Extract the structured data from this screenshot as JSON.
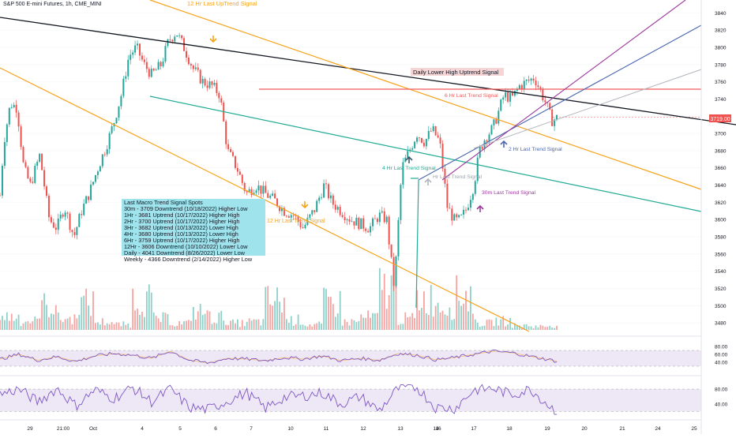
{
  "header": {
    "title": "S&P 500 E-mini Futures, 1h, CME_MINI"
  },
  "price_badge": {
    "value": "3719.00"
  },
  "signal_box": {
    "title": "Last Macro Trend Signal Spots",
    "lines": [
      "30m - 3709 Downtrend (10/18/2022) Higher Low",
      "1Hr - 3681 Uptrend (10/17/2022) Higher High",
      "2Hr - 3700 Uptrend (10/17/2022) Higher High",
      "3Hr - 3682 Uptrend (10/13/2022) Lower High",
      "4Hr - 3680 Uptrend (10/13/2022) Lower High",
      "6Hr - 3759 Uptrend (10/17/2022) Higher High",
      "12Hr - 3606 Downtrend (10/10/2022) Lower Low",
      "Daily - 4041 Downtrend (8/26/2022) Lower Low",
      "Weekly - 4366 Downtrend (2/14/2022) Higher Low"
    ]
  },
  "annotations": {
    "uptrend_12hr": "12 Hr Last UpTrend Signal",
    "trend_12hr": "12 Hr Last Trend Signal",
    "daily_lower_high": "Daily Lower High Uptrend Signal",
    "trend_6hr": "6 Hr Last Trend Signal",
    "trend_4hr": "4 Hr Last Trend Signal",
    "trend_hr": "Hr Last Trend Signal",
    "trend_2hr": "2 Hr Last Trend Signal",
    "trend_30m": "30m Last Trend Signal"
  },
  "colors": {
    "up": "#26a69a",
    "down": "#ef5350",
    "orange": "#f7a21b",
    "black_line": "#131722",
    "red_line": "#f05a5a",
    "teal_line": "#22ab94",
    "blue_line": "#4a66b0",
    "purple_line": "#9c3a9c",
    "gray_line": "#b2b5be",
    "rsi": "#7e57c2",
    "signal_box": "#9fe3ec"
  },
  "chart_data": {
    "type": "candlestick",
    "price_axis": {
      "ticks": [
        3480,
        3500,
        3520,
        3540,
        3560,
        3580,
        3600,
        3620,
        3640,
        3660,
        3680,
        3700,
        3720,
        3740,
        3760,
        3780,
        3800,
        3820,
        3840
      ],
      "range": [
        3470,
        3855
      ]
    },
    "time_axis": {
      "labels": [
        "29",
        "21:00",
        "Oct",
        "4",
        "5",
        "6",
        "7",
        "10",
        "11",
        "12",
        "13",
        "14",
        "16",
        "17",
        "18",
        "19",
        "20",
        "21",
        "24",
        "25"
      ]
    },
    "close_path": [
      [
        0,
        3628
      ],
      [
        0.2,
        3690
      ],
      [
        0.55,
        3735
      ],
      [
        0.9,
        3730
      ],
      [
        1.25,
        3660
      ],
      [
        1.6,
        3640
      ],
      [
        2.1,
        3675
      ],
      [
        2.6,
        3600
      ],
      [
        3.0,
        3590
      ],
      [
        3.4,
        3615
      ],
      [
        3.9,
        3580
      ],
      [
        4.3,
        3610
      ],
      [
        4.7,
        3630
      ],
      [
        5.2,
        3662
      ],
      [
        5.6,
        3685
      ],
      [
        6.0,
        3712
      ],
      [
        6.4,
        3745
      ],
      [
        6.8,
        3790
      ],
      [
        7.2,
        3800
      ],
      [
        7.6,
        3780
      ],
      [
        8.0,
        3768
      ],
      [
        8.5,
        3780
      ],
      [
        8.9,
        3808
      ],
      [
        9.3,
        3818
      ],
      [
        9.7,
        3800
      ],
      [
        10.2,
        3775
      ],
      [
        10.7,
        3760
      ],
      [
        11.2,
        3755
      ],
      [
        11.6,
        3745
      ],
      [
        12.0,
        3680
      ],
      [
        12.5,
        3660
      ],
      [
        13.0,
        3630
      ],
      [
        13.5,
        3640
      ],
      [
        14.0,
        3630
      ],
      [
        14.5,
        3622
      ],
      [
        15.0,
        3610
      ],
      [
        15.5,
        3605
      ],
      [
        16.0,
        3590
      ],
      [
        16.6,
        3612
      ],
      [
        17.1,
        3640
      ],
      [
        17.5,
        3620
      ],
      [
        18.0,
        3610
      ],
      [
        18.5,
        3600
      ],
      [
        19.0,
        3595
      ],
      [
        19.5,
        3590
      ],
      [
        20.0,
        3605
      ],
      [
        20.4,
        3600
      ],
      [
        20.8,
        3520
      ],
      [
        21.2,
        3660
      ],
      [
        21.6,
        3680
      ],
      [
        22.0,
        3700
      ],
      [
        22.4,
        3690
      ],
      [
        22.8,
        3705
      ],
      [
        23.2,
        3690
      ],
      [
        23.6,
        3615
      ],
      [
        24.0,
        3598
      ],
      [
        24.3,
        3600
      ],
      [
        24.6,
        3612
      ],
      [
        25.0,
        3640
      ],
      [
        25.3,
        3680
      ],
      [
        25.6,
        3695
      ],
      [
        26.0,
        3706
      ],
      [
        26.3,
        3725
      ],
      [
        26.6,
        3745
      ],
      [
        27.0,
        3740
      ],
      [
        27.4,
        3755
      ],
      [
        27.8,
        3760
      ],
      [
        28.2,
        3765
      ],
      [
        28.5,
        3750
      ],
      [
        28.8,
        3735
      ],
      [
        29.1,
        3715
      ],
      [
        29.5,
        3719
      ]
    ],
    "volume_profile": [
      [
        0,
        30
      ],
      [
        1,
        20
      ],
      [
        2,
        55
      ],
      [
        3,
        25
      ],
      [
        4,
        60
      ],
      [
        5,
        18
      ],
      [
        6,
        12
      ],
      [
        7,
        70
      ],
      [
        8,
        25
      ],
      [
        9,
        15
      ],
      [
        10,
        40
      ],
      [
        11,
        28
      ],
      [
        12,
        15
      ],
      [
        13,
        18
      ],
      [
        14,
        65
      ],
      [
        15,
        22
      ],
      [
        16,
        12
      ],
      [
        17,
        60
      ],
      [
        18,
        18
      ],
      [
        19,
        28
      ],
      [
        20,
        95
      ],
      [
        21,
        25
      ],
      [
        22,
        70
      ],
      [
        23,
        55
      ],
      [
        24,
        78
      ],
      [
        25,
        15
      ],
      [
        26,
        20
      ],
      [
        27,
        10
      ],
      [
        28,
        8
      ],
      [
        29,
        10
      ]
    ],
    "rsi_series": [
      [
        0,
        48
      ],
      [
        1,
        60
      ],
      [
        2,
        45
      ],
      [
        3,
        54
      ],
      [
        4,
        42
      ],
      [
        5,
        56
      ],
      [
        6,
        62
      ],
      [
        7,
        58
      ],
      [
        8,
        50
      ],
      [
        9,
        68
      ],
      [
        10,
        45
      ],
      [
        11,
        38
      ],
      [
        12,
        50
      ],
      [
        13,
        48
      ],
      [
        14,
        44
      ],
      [
        15,
        52
      ],
      [
        16,
        48
      ],
      [
        17,
        56
      ],
      [
        18,
        44
      ],
      [
        19,
        50
      ],
      [
        20,
        45
      ],
      [
        21,
        62
      ],
      [
        22,
        58
      ],
      [
        23,
        46
      ],
      [
        24,
        52
      ],
      [
        25,
        60
      ],
      [
        26,
        68
      ],
      [
        27,
        64
      ],
      [
        28,
        55
      ],
      [
        29,
        46
      ]
    ],
    "rsi_axis": {
      "ticks": [
        40.0,
        60.0,
        80.0
      ]
    },
    "osc_series": [
      [
        0,
        66
      ],
      [
        1,
        80
      ],
      [
        2,
        45
      ],
      [
        3,
        82
      ],
      [
        4,
        35
      ],
      [
        5,
        78
      ],
      [
        6,
        55
      ],
      [
        7,
        84
      ],
      [
        8,
        46
      ],
      [
        9,
        80
      ],
      [
        10,
        30
      ],
      [
        11,
        25
      ],
      [
        12,
        48
      ],
      [
        13,
        70
      ],
      [
        14,
        28
      ],
      [
        15,
        58
      ],
      [
        16,
        62
      ],
      [
        17,
        70
      ],
      [
        18,
        40
      ],
      [
        19,
        60
      ],
      [
        20,
        22
      ],
      [
        21,
        82
      ],
      [
        22,
        85
      ],
      [
        23,
        30
      ],
      [
        24,
        28
      ],
      [
        25,
        78
      ],
      [
        26,
        82
      ],
      [
        27,
        65
      ],
      [
        28,
        80
      ],
      [
        29,
        35
      ]
    ],
    "osc_axis": {
      "ticks": [
        40.0,
        80.0
      ]
    }
  }
}
